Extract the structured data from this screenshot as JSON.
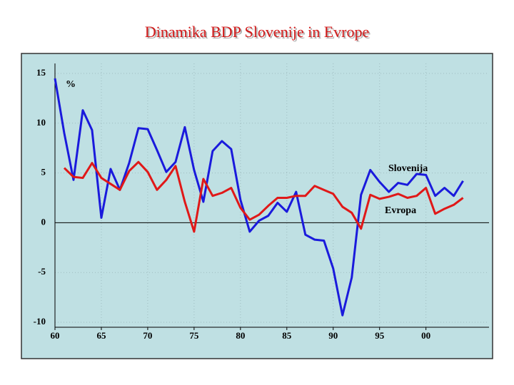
{
  "chart_data": {
    "type": "line",
    "title": "Dinamika BDP Slovenije in Evrope",
    "y_unit": "%",
    "x": [
      60,
      61,
      62,
      63,
      64,
      65,
      66,
      67,
      68,
      69,
      70,
      71,
      72,
      73,
      74,
      75,
      76,
      77,
      78,
      79,
      80,
      81,
      82,
      83,
      84,
      85,
      86,
      87,
      88,
      89,
      90,
      91,
      92,
      93,
      94,
      95,
      96,
      97,
      98,
      99,
      100,
      101,
      102,
      103,
      104
    ],
    "series": [
      {
        "name": "Slovenija",
        "color": "#1a1adc",
        "values": [
          14.5,
          9,
          4.3,
          11.3,
          9.3,
          0.5,
          5.4,
          3.3,
          6,
          9.5,
          9.4,
          7.3,
          5.1,
          6.1,
          9.6,
          5.3,
          2.1,
          7.2,
          8.2,
          7.4,
          2.3,
          -0.9,
          0.2,
          0.7,
          2,
          1.1,
          3.1,
          -1.2,
          -1.7,
          -1.8,
          -4.6,
          -9.3,
          -5.5,
          2.8,
          5.3,
          4.1,
          3.1,
          4,
          3.8,
          4.9,
          4.8,
          2.7,
          3.5,
          2.7,
          4.2
        ]
      },
      {
        "name": "Evropa",
        "color": "#e01818",
        "values": [
          null,
          5.5,
          4.6,
          4.5,
          6,
          4.5,
          3.9,
          3.3,
          5.2,
          6.1,
          5.1,
          3.3,
          4.3,
          5.7,
          2.1,
          -0.9,
          4.4,
          2.7,
          3,
          3.5,
          1.5,
          0.3,
          0.8,
          1.7,
          2.5,
          2.5,
          2.7,
          2.7,
          3.7,
          3.3,
          2.9,
          1.6,
          1,
          -0.6,
          2.8,
          2.4,
          2.6,
          2.9,
          2.5,
          2.7,
          3.5,
          0.9,
          1.4,
          1.8,
          2.5
        ]
      }
    ],
    "xlim": [
      60,
      106.8
    ],
    "xticks": [
      60,
      65,
      70,
      75,
      80,
      85,
      90,
      95,
      {
        "value": 100,
        "label": "00"
      }
    ],
    "ylim": [
      -10.5,
      16
    ],
    "yticks": [
      15,
      10,
      5,
      0,
      -5,
      -10
    ],
    "grid": true
  }
}
